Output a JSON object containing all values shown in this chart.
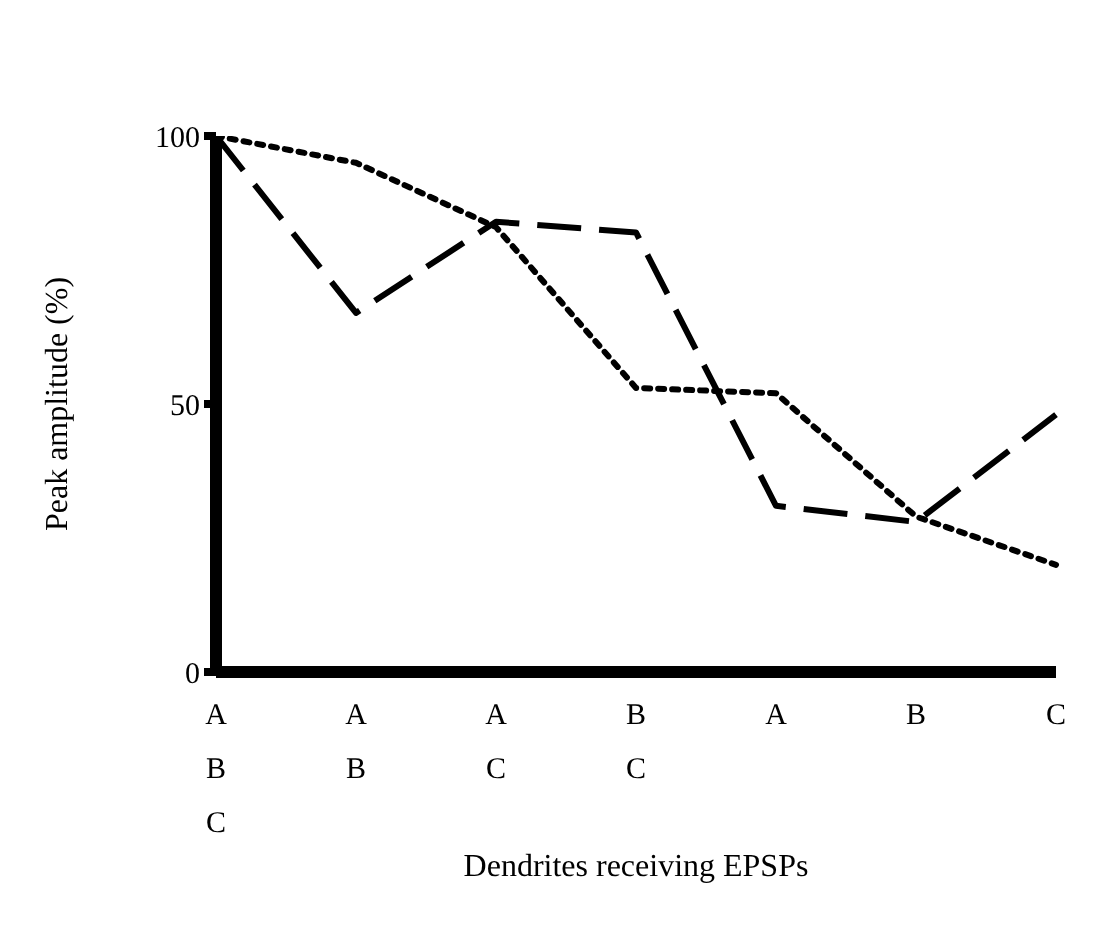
{
  "chart_data": {
    "type": "line",
    "xlabel": "Dendrites receiving EPSPs",
    "ylabel": "Peak amplitude (%)",
    "categories": [
      "A\nB\nC",
      "A\nB",
      "A\nC",
      "B\nC",
      "A",
      "B",
      "C"
    ],
    "series": [
      {
        "color": "#000000",
        "line_style": "dashed",
        "values": [
          100,
          67,
          84,
          82,
          31,
          28,
          48
        ]
      },
      {
        "color": "#000000",
        "line_style": "dotted",
        "values": [
          100,
          95,
          83,
          53,
          52,
          29,
          20
        ]
      }
    ],
    "ylim": [
      0,
      100
    ],
    "yticks": [
      0,
      50,
      100
    ],
    "marker": "none"
  }
}
